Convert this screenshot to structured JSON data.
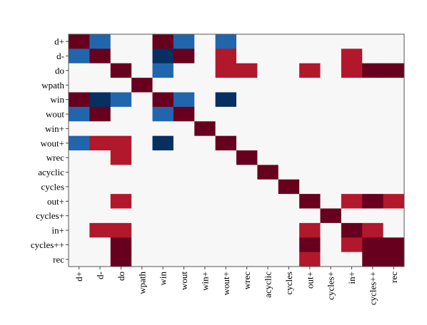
{
  "chart_data": {
    "type": "heatmap",
    "title": "",
    "xlabel": "",
    "ylabel": "",
    "labels": [
      "d+",
      "d-",
      "do",
      "wpath",
      "win",
      "wout",
      "win+",
      "wout+",
      "wrec",
      "acyclic",
      "cycles",
      "out+",
      "cycles+",
      "in+",
      "cycles++",
      "rec"
    ],
    "value_range": [
      -1,
      1
    ],
    "grid": false,
    "legend": "none",
    "colors": {
      "1": "#67001f",
      "0.8": "#67001f",
      "0.5": "#b2182b",
      "0": "#f7f7f7",
      "-0.5": "#2166ac",
      "-0.8": "#053061",
      "frame": "#555555"
    },
    "matrix": [
      [
        0.8,
        -0.5,
        0,
        0,
        0.8,
        -0.5,
        0,
        -0.5,
        0,
        0,
        0,
        0,
        0,
        0,
        0,
        0
      ],
      [
        -0.5,
        0.8,
        0,
        0,
        -0.8,
        0.8,
        0,
        0.5,
        0,
        0,
        0,
        0,
        0,
        0.5,
        0,
        0
      ],
      [
        0,
        0,
        0.8,
        0,
        -0.5,
        0,
        0,
        0.5,
        0.5,
        0,
        0,
        0.5,
        0,
        0.5,
        0.8,
        0.8
      ],
      [
        0,
        0,
        0,
        1,
        0,
        0,
        0,
        0,
        0,
        0,
        0,
        0,
        0,
        0,
        0,
        0
      ],
      [
        0.8,
        -0.8,
        -0.5,
        0,
        0.8,
        -0.5,
        0,
        -0.8,
        0,
        0,
        0,
        0,
        0,
        0,
        0,
        0
      ],
      [
        -0.5,
        0.8,
        0,
        0,
        -0.5,
        0.8,
        0,
        0,
        0,
        0,
        0,
        0,
        0,
        0,
        0,
        0
      ],
      [
        0,
        0,
        0,
        0,
        0,
        0,
        1,
        0,
        0,
        0,
        0,
        0,
        0,
        0,
        0,
        0
      ],
      [
        -0.5,
        0.5,
        0.5,
        0,
        -0.8,
        0,
        0,
        0.8,
        0,
        0,
        0,
        0,
        0,
        0,
        0,
        0
      ],
      [
        0,
        0,
        0.5,
        0,
        0,
        0,
        0,
        0,
        1,
        0,
        0,
        0,
        0,
        0,
        0,
        0
      ],
      [
        0,
        0,
        0,
        0,
        0,
        0,
        0,
        0,
        0,
        1,
        0,
        0,
        0,
        0,
        0,
        0
      ],
      [
        0,
        0,
        0,
        0,
        0,
        0,
        0,
        0,
        0,
        0,
        1,
        0,
        0,
        0,
        0,
        0
      ],
      [
        0,
        0,
        0.5,
        0,
        0,
        0,
        0,
        0,
        0,
        0,
        0,
        0.8,
        0,
        0.5,
        0.8,
        0.5
      ],
      [
        0,
        0,
        0,
        0,
        0,
        0,
        0,
        0,
        0,
        0,
        0,
        0,
        1,
        0,
        0,
        0
      ],
      [
        0,
        0.5,
        0.5,
        0,
        0,
        0,
        0,
        0,
        0,
        0,
        0,
        0.5,
        0,
        0.8,
        0.5,
        0
      ],
      [
        0,
        0,
        0.8,
        0,
        0,
        0,
        0,
        0,
        0,
        0,
        0,
        0.8,
        0,
        0.5,
        0.8,
        0.8
      ],
      [
        0,
        0,
        0.8,
        0,
        0,
        0,
        0,
        0,
        0,
        0,
        0,
        0.5,
        0,
        0,
        0.8,
        0.8
      ]
    ]
  }
}
